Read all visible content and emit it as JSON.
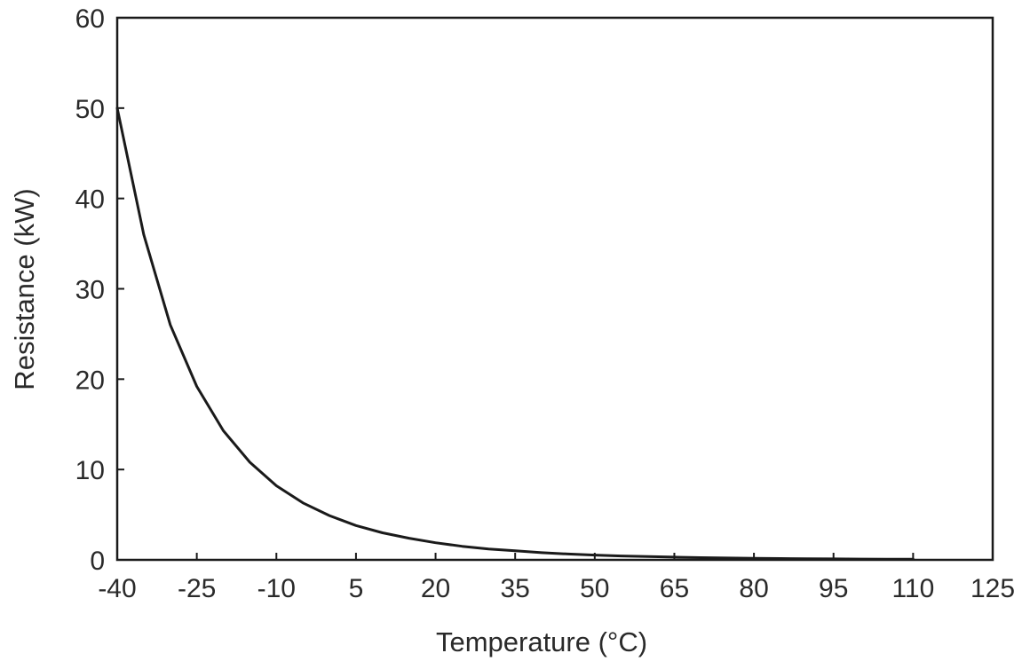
{
  "chart_data": {
    "type": "line",
    "title": "",
    "xlabel": "Temperature (°C)",
    "ylabel": "Resistance (kW)",
    "xlim": [
      -40,
      125
    ],
    "ylim": [
      0,
      60
    ],
    "x_ticks": [
      "-40",
      "-25",
      "-10",
      "5",
      "20",
      "35",
      "50",
      "65",
      "80",
      "95",
      "110",
      "125"
    ],
    "y_ticks": [
      "0",
      "10",
      "20",
      "30",
      "40",
      "50",
      "60"
    ],
    "grid": false,
    "legend": "none",
    "line_color": "#1a1a1a",
    "series": [
      {
        "x": [
          -40,
          -35,
          -30,
          -25,
          -20,
          -15,
          -10,
          -5,
          0,
          5,
          10,
          15,
          20,
          25,
          30,
          35,
          40,
          45,
          50,
          55,
          60,
          65,
          70,
          75,
          80,
          85,
          90,
          95,
          100,
          105,
          110
        ],
        "values": [
          50.0,
          36.0,
          26.0,
          19.2,
          14.3,
          10.8,
          8.2,
          6.3,
          4.9,
          3.8,
          3.0,
          2.4,
          1.9,
          1.5,
          1.2,
          1.0,
          0.8,
          0.65,
          0.53,
          0.43,
          0.36,
          0.3,
          0.25,
          0.21,
          0.18,
          0.15,
          0.13,
          0.11,
          0.09,
          0.08,
          0.07
        ]
      }
    ]
  }
}
